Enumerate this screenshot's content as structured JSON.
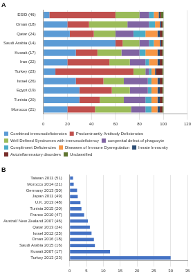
{
  "chart_data": [
    {
      "type": "bar",
      "title": "A",
      "orientation": "horizontal",
      "stacked": true,
      "grid": true,
      "legend": "bottom",
      "categories": [
        "ESID (46)",
        "Oman (18)",
        "Qatar (24)",
        "Saudi Arabia (14)",
        "Kuwait (17)",
        "Iran (22)",
        "Turkey (23)",
        "Israel (26)",
        "Egypt (19)",
        "Tunisia (20)",
        "Morocco (21)"
      ],
      "xlim": [
        0,
        120
      ],
      "xticks": [
        0,
        20,
        40,
        60,
        80,
        100,
        120
      ],
      "series": [
        {
          "name": "Combined immunodeficiencies",
          "color": "#5b9bd5",
          "values": [
            5,
            20,
            22,
            60,
            27,
            20,
            10,
            27,
            30,
            30,
            20
          ]
        },
        {
          "name": "Predominantly Antibody Deficiencies",
          "color": "#c0504d",
          "values": [
            55,
            18,
            20,
            6,
            18,
            35,
            65,
            23,
            27,
            17,
            23
          ]
        },
        {
          "name": "Well Defined Syndromes with immunodeficiency",
          "color": "#9bbb59",
          "values": [
            20,
            32,
            18,
            14,
            20,
            17,
            10,
            17,
            15,
            20,
            30
          ]
        },
        {
          "name": "congenital defect of phagocyte",
          "color": "#8064a2",
          "values": [
            8,
            18,
            15,
            8,
            15,
            13,
            3,
            20,
            15,
            18,
            12
          ]
        },
        {
          "name": "Compliment Deficiencies",
          "color": "#4bacc6",
          "values": [
            4,
            5,
            10,
            4,
            5,
            3,
            2,
            3,
            3,
            5,
            5
          ]
        },
        {
          "name": "Diseases of Immune Dysregulation",
          "color": "#f79646",
          "values": [
            4,
            4,
            10,
            5,
            10,
            7,
            3,
            5,
            5,
            5,
            5
          ]
        },
        {
          "name": "Innate Immunity",
          "color": "#2c4d75",
          "values": [
            1,
            1,
            2,
            1,
            2,
            2,
            1,
            2,
            2,
            2,
            2
          ]
        },
        {
          "name": "Autoinflammatory disorders",
          "color": "#772c2a",
          "values": [
            1,
            1,
            2,
            1,
            2,
            2,
            5,
            2,
            2,
            2,
            2
          ]
        },
        {
          "name": "Unclassified",
          "color": "#5f7530",
          "values": [
            2,
            1,
            1,
            1,
            1,
            1,
            1,
            1,
            1,
            1,
            1
          ]
        }
      ]
    },
    {
      "type": "bar",
      "title": "B",
      "orientation": "horizontal",
      "grid": true,
      "categories": [
        "Taiwan 2011 (51)",
        "Morocco 2014 (21)",
        "Germany 2013 (50)",
        "Japan 2011 (49)",
        "U.K. 2013 (48)",
        "Tunisia 2015 (20)",
        "France 2010 (47)",
        "Austral/ New Zealand 2007 (46)",
        "Qatar 2013 (24)",
        "Israel 2012 (25)",
        "Oman 2016 (18)",
        "Saudi Arabia 2015 (16)",
        "Kuwait 2007 (17)",
        "Turkey 2013 (23)"
      ],
      "values": [
        1,
        1.2,
        2.2,
        2.4,
        3.2,
        3.5,
        4.3,
        5.4,
        6,
        6.5,
        7.2,
        7.5,
        12,
        30
      ],
      "color": "#4472c4",
      "xlim": [
        0,
        35
      ],
      "xticks": [
        0,
        5,
        10,
        15,
        20,
        25,
        30,
        35
      ]
    }
  ]
}
